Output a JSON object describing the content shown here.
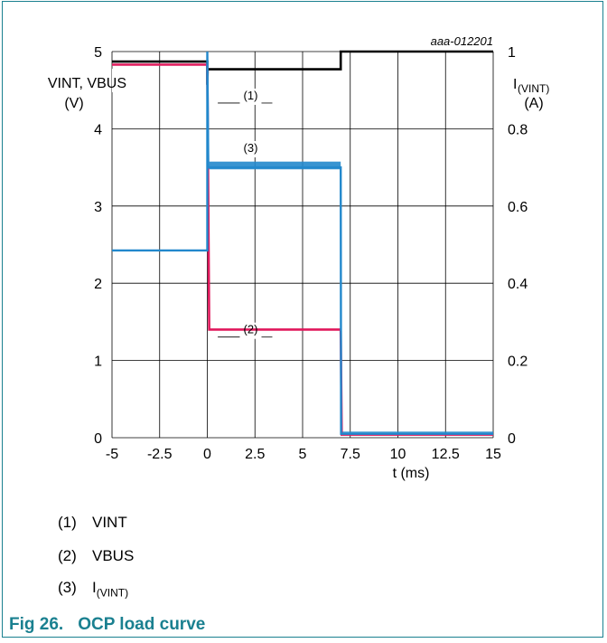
{
  "chart_data": {
    "type": "line",
    "figure_id": "aaa-012201",
    "x_axis": {
      "label": "t (ms)",
      "range": [
        -5,
        15
      ],
      "ticks": [
        -5,
        -2.5,
        0,
        2.5,
        5,
        7.5,
        10,
        12.5,
        15
      ],
      "tick_labels": [
        "-5",
        "-2.5",
        "0",
        "2.5",
        "5",
        "7.5",
        "10",
        "12.5",
        "15"
      ]
    },
    "y_left": {
      "label_line1": "VINT, VBUS",
      "label_line2": "(V)",
      "range": [
        0,
        5
      ],
      "ticks": [
        0,
        1,
        2,
        3,
        4,
        5
      ],
      "tick_labels": [
        "0",
        "1",
        "2",
        "3",
        "4",
        "5"
      ]
    },
    "y_right": {
      "label_main": "I",
      "label_sub": "(VINT)",
      "label_unit": "(A)",
      "range": [
        0,
        1
      ],
      "ticks": [
        0,
        0.2,
        0.4,
        0.6,
        0.8,
        1
      ],
      "tick_labels": [
        "0",
        "0.2",
        "0.4",
        "0.6",
        "0.8",
        "1"
      ]
    },
    "grid": true,
    "series": [
      {
        "marker": "(1)",
        "color": "#000000",
        "axis": "left",
        "points": [
          [
            -5,
            4.87
          ],
          [
            0,
            4.87
          ],
          [
            0,
            4.57
          ],
          [
            0.02,
            4.77
          ],
          [
            7.0,
            4.77
          ],
          [
            7.0,
            5.0
          ],
          [
            15,
            5.0
          ]
        ]
      },
      {
        "marker": "(2)",
        "color": "#e0185c",
        "axis": "left",
        "points": [
          [
            -5,
            4.83
          ],
          [
            0,
            4.83
          ],
          [
            0.1,
            1.4
          ],
          [
            7.0,
            1.4
          ],
          [
            7.05,
            0.04
          ],
          [
            15,
            0.04
          ]
        ]
      },
      {
        "marker": "(3)",
        "color": "#2288cc",
        "axis": "right",
        "points": [
          [
            -5,
            0.485
          ],
          [
            0,
            0.485
          ],
          [
            0,
            1.0
          ],
          [
            0.05,
            0.7
          ],
          [
            7.0,
            0.7
          ],
          [
            7.02,
            0.01
          ],
          [
            15,
            0.01
          ]
        ]
      }
    ],
    "annotations": [
      {
        "text": "(1)",
        "x": 1.8,
        "y": 4.38
      },
      {
        "text": "(2)",
        "x": 1.8,
        "y": 1.35
      },
      {
        "text": "(3)",
        "x": 1.8,
        "y": 3.7
      }
    ]
  },
  "legend": [
    {
      "num": "(1)",
      "text": "VINT",
      "sub": ""
    },
    {
      "num": "(2)",
      "text": "VBUS",
      "sub": ""
    },
    {
      "num": "(3)",
      "text": "I",
      "sub": "I(VINT)"
    }
  ],
  "caption": {
    "fig": "Fig 26.",
    "title": "OCP load curve"
  }
}
